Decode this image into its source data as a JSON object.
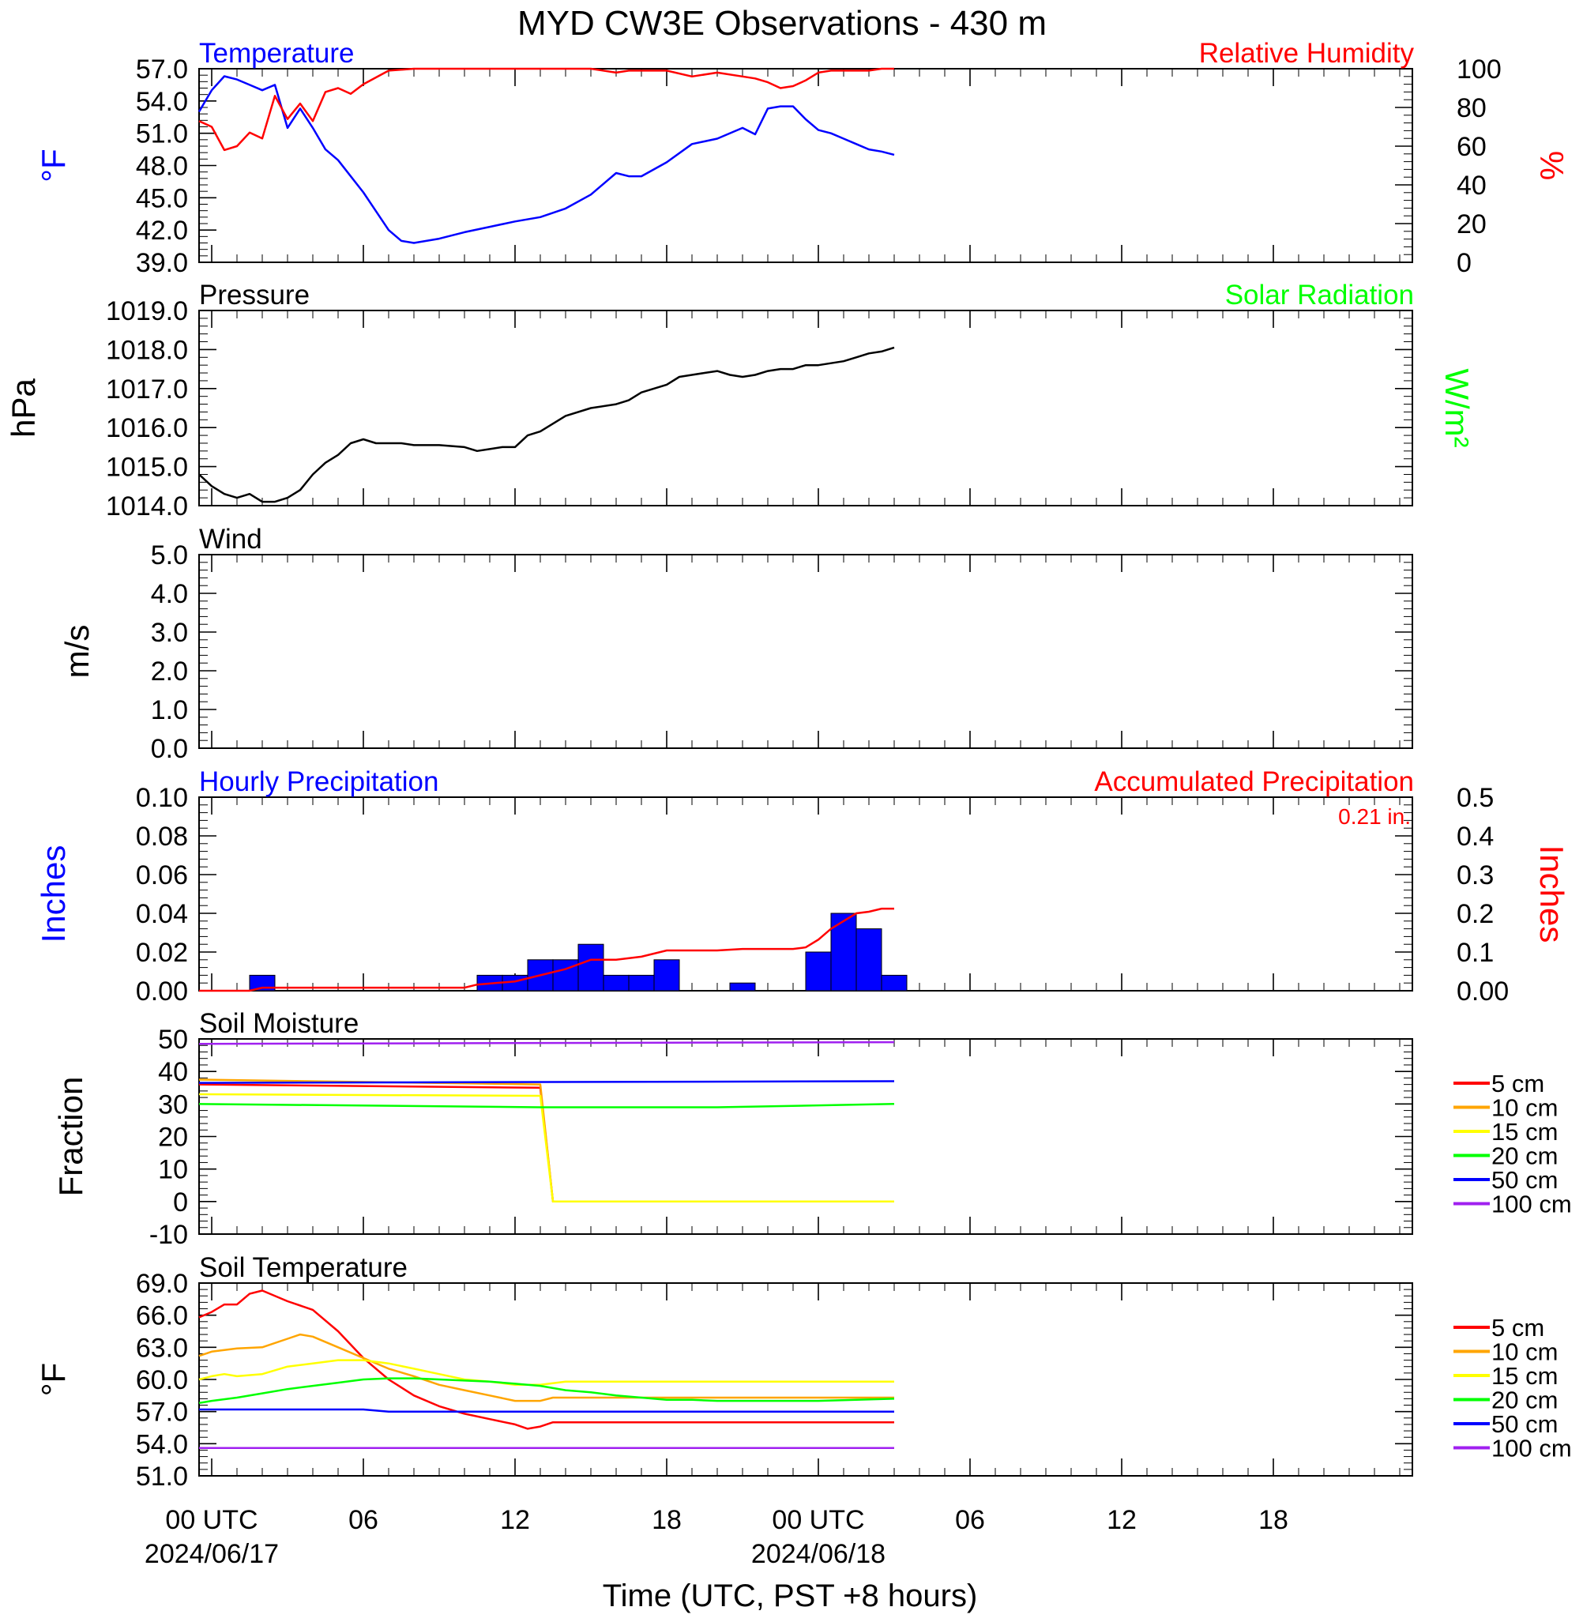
{
  "title": "MYD CW3E Observations - 430 m",
  "x_axis": {
    "label": "Time (UTC, PST +8 hours)",
    "range_hours": [
      -0.5,
      47.5
    ],
    "major_ticks": [
      {
        "hour": 0,
        "label": "00 UTC",
        "date": "2024/06/17"
      },
      {
        "hour": 6,
        "label": "06",
        "date": ""
      },
      {
        "hour": 12,
        "label": "12",
        "date": ""
      },
      {
        "hour": 18,
        "label": "18",
        "date": ""
      },
      {
        "hour": 24,
        "label": "00 UTC",
        "date": "2024/06/18"
      },
      {
        "hour": 30,
        "label": "06",
        "date": ""
      },
      {
        "hour": 36,
        "label": "12",
        "date": ""
      },
      {
        "hour": 42,
        "label": "18",
        "date": ""
      }
    ]
  },
  "colors": {
    "temperature": "#0000ff",
    "humidity": "#ff0000",
    "pressure": "#000000",
    "solar": "#00ff00",
    "hourly_precip": "#0000ff",
    "accum_precip": "#ff0000",
    "depth_5cm": "#ff0000",
    "depth_10cm": "#ffa500",
    "depth_15cm": "#ffff00",
    "depth_20cm": "#00ff00",
    "depth_50cm": "#0000ff",
    "depth_100cm": "#a020f0"
  },
  "panels": {
    "temp_rh": {
      "left_title": "Temperature",
      "right_title": "Relative Humidity",
      "left_unit": "°F",
      "right_unit": "%"
    },
    "pressure": {
      "left_title": "Pressure",
      "right_title": "Solar Radiation",
      "left_unit": "hPa",
      "right_unit": "W/m²"
    },
    "wind": {
      "left_title": "Wind",
      "left_unit": "m/s"
    },
    "precip": {
      "left_title": "Hourly Precipitation",
      "right_title": "Accumulated Precipitation",
      "left_unit": "Inches",
      "right_unit": "Inches",
      "total_note": "0.21 in."
    },
    "soil_moisture": {
      "left_title": "Soil Moisture",
      "left_unit": "Fraction"
    },
    "soil_temp": {
      "left_title": "Soil Temperature",
      "left_unit": "°F"
    }
  },
  "chart_data": [
    {
      "id": "temp_rh",
      "type": "line",
      "y_left": {
        "range": [
          39,
          57
        ],
        "ticks": [
          "39.0",
          "42.0",
          "45.0",
          "48.0",
          "51.0",
          "54.0",
          "57.0"
        ]
      },
      "y_right": {
        "range": [
          0,
          100
        ],
        "ticks": [
          "0",
          "20",
          "40",
          "60",
          "80",
          "100"
        ]
      },
      "series": [
        {
          "name": "Temperature",
          "axis": "left",
          "color_key": "temperature",
          "x": [
            -0.5,
            0,
            0.5,
            1,
            1.5,
            2,
            2.5,
            3,
            3.5,
            4,
            4.5,
            5,
            6,
            7,
            7.5,
            8,
            9,
            10,
            11,
            12,
            13,
            14,
            15,
            16,
            16.5,
            17,
            18,
            19,
            20,
            21,
            21.5,
            22,
            22.5,
            23,
            23.5,
            24,
            24.5,
            25,
            25.5,
            26,
            26.5,
            27
          ],
          "y": [
            53,
            55,
            56.3,
            56,
            55.5,
            55,
            55.5,
            51.5,
            53.3,
            51.5,
            49.5,
            48.5,
            45.5,
            42,
            41,
            40.8,
            41.2,
            41.8,
            42.3,
            42.8,
            43.2,
            44,
            45.3,
            47.3,
            47,
            47,
            48.3,
            50,
            50.5,
            51.5,
            50.9,
            53.3,
            53.5,
            53.5,
            52.3,
            51.3,
            51,
            50.5,
            50,
            49.5,
            49.3,
            49
          ]
        },
        {
          "name": "Relative Humidity",
          "axis": "right",
          "color_key": "humidity",
          "x": [
            -0.5,
            0,
            0.5,
            1,
            1.5,
            2,
            2.5,
            3,
            3.5,
            4,
            4.5,
            5,
            5.5,
            6,
            7,
            8,
            9,
            10,
            11,
            12,
            13,
            14,
            15,
            16,
            16.5,
            17,
            18,
            19,
            20,
            21,
            21.5,
            22,
            22.5,
            23,
            23.5,
            24,
            24.5,
            25,
            25.5,
            26,
            26.5,
            27
          ],
          "y": [
            73,
            70,
            58,
            60,
            67,
            64,
            86,
            74,
            82,
            73,
            88,
            90,
            87,
            92,
            99,
            100,
            100,
            100,
            100,
            100,
            100,
            100,
            100,
            98,
            99,
            99,
            99,
            96,
            98,
            96,
            95,
            93,
            90,
            91,
            94,
            98,
            99,
            99,
            99,
            99,
            100,
            100
          ]
        }
      ]
    },
    {
      "id": "pressure",
      "type": "line",
      "y_left": {
        "range": [
          1014,
          1019
        ],
        "ticks": [
          "1014.0",
          "1015.0",
          "1016.0",
          "1017.0",
          "1018.0",
          "1019.0"
        ]
      },
      "series": [
        {
          "name": "Pressure",
          "axis": "left",
          "color_key": "pressure",
          "x": [
            -0.5,
            0,
            0.5,
            1,
            1.5,
            2,
            2.5,
            3,
            3.5,
            4,
            4.5,
            5,
            5.5,
            6,
            6.5,
            7,
            7.5,
            8,
            9,
            10,
            10.5,
            11,
            11.5,
            12,
            12.5,
            13,
            14,
            15,
            16,
            16.5,
            17,
            18,
            18.5,
            19,
            19.5,
            20,
            20.5,
            21,
            21.5,
            22,
            22.5,
            23,
            23.5,
            24,
            24.5,
            25,
            25.5,
            26,
            26.5,
            27
          ],
          "y": [
            1014.8,
            1014.5,
            1014.3,
            1014.2,
            1014.3,
            1014.1,
            1014.1,
            1014.2,
            1014.4,
            1014.8,
            1015.1,
            1015.3,
            1015.6,
            1015.7,
            1015.6,
            1015.6,
            1015.6,
            1015.55,
            1015.55,
            1015.5,
            1015.4,
            1015.45,
            1015.5,
            1015.5,
            1015.8,
            1015.9,
            1016.3,
            1016.5,
            1016.6,
            1016.7,
            1016.9,
            1017.1,
            1017.3,
            1017.35,
            1017.4,
            1017.45,
            1017.35,
            1017.3,
            1017.35,
            1017.45,
            1017.5,
            1017.5,
            1017.6,
            1017.6,
            1017.65,
            1017.7,
            1017.8,
            1017.9,
            1017.95,
            1018.05
          ]
        }
      ]
    },
    {
      "id": "wind",
      "type": "line",
      "y_left": {
        "range": [
          0,
          5
        ],
        "ticks": [
          "0.0",
          "1.0",
          "2.0",
          "3.0",
          "4.0",
          "5.0"
        ]
      },
      "series": []
    },
    {
      "id": "precip",
      "type": "bar",
      "y_left": {
        "range": [
          0,
          0.1
        ],
        "ticks": [
          "0.00",
          "0.02",
          "0.04",
          "0.06",
          "0.08",
          "0.10"
        ]
      },
      "y_right": {
        "range": [
          0,
          0.5
        ],
        "ticks": [
          "0.00",
          "0.1",
          "0.2",
          "0.3",
          "0.4",
          "0.5"
        ]
      },
      "hourly": {
        "x": [
          2,
          11,
          12,
          13,
          14,
          15,
          16,
          17,
          18,
          21,
          24,
          25,
          26,
          27
        ],
        "y": [
          0.008,
          0.008,
          0.008,
          0.016,
          0.016,
          0.024,
          0.008,
          0.008,
          0.016,
          0.004,
          0.02,
          0.04,
          0.032,
          0.008
        ]
      },
      "accumulated": {
        "x": [
          -0.5,
          1.5,
          2,
          3,
          10,
          10.5,
          12,
          13,
          14,
          15,
          16,
          17,
          18,
          19,
          20,
          21,
          22,
          23,
          23.5,
          24,
          24.5,
          25,
          25.5,
          26,
          26.5,
          27
        ],
        "y": [
          0,
          0,
          0.008,
          0.008,
          0.008,
          0.016,
          0.024,
          0.04,
          0.056,
          0.08,
          0.08,
          0.088,
          0.104,
          0.104,
          0.104,
          0.108,
          0.108,
          0.108,
          0.112,
          0.132,
          0.16,
          0.18,
          0.2,
          0.204,
          0.212,
          0.212
        ]
      }
    },
    {
      "id": "soil_moisture",
      "type": "line",
      "y_left": {
        "range": [
          -10,
          50
        ],
        "ticks": [
          "-10",
          "0",
          "10",
          "20",
          "30",
          "40",
          "50"
        ]
      },
      "series": [
        {
          "name": "5 cm",
          "color_key": "depth_5cm",
          "x": [
            -0.5,
            13,
            13.5,
            27
          ],
          "y": [
            36,
            35,
            0,
            0
          ]
        },
        {
          "name": "10 cm",
          "color_key": "depth_10cm",
          "x": [
            -0.5,
            13,
            13.5,
            27
          ],
          "y": [
            37.5,
            36,
            0,
            0
          ]
        },
        {
          "name": "15 cm",
          "color_key": "depth_15cm",
          "x": [
            -0.5,
            13,
            13.5,
            27
          ],
          "y": [
            33,
            32.5,
            0,
            0
          ]
        },
        {
          "name": "20 cm",
          "color_key": "depth_20cm",
          "x": [
            -0.5,
            13,
            20,
            27
          ],
          "y": [
            30,
            29,
            29,
            30
          ]
        },
        {
          "name": "50 cm",
          "color_key": "depth_50cm",
          "x": [
            -0.5,
            27
          ],
          "y": [
            36.5,
            37
          ]
        },
        {
          "name": "100 cm",
          "color_key": "depth_100cm",
          "x": [
            -0.5,
            27
          ],
          "y": [
            48.5,
            49
          ]
        }
      ]
    },
    {
      "id": "soil_temp",
      "type": "line",
      "y_left": {
        "range": [
          51,
          69
        ],
        "ticks": [
          "51.0",
          "54.0",
          "57.0",
          "60.0",
          "63.0",
          "66.0",
          "69.0"
        ]
      },
      "series": [
        {
          "name": "5 cm",
          "color_key": "depth_5cm",
          "x": [
            -0.5,
            0,
            0.5,
            1,
            1.5,
            2,
            3,
            4,
            5,
            6,
            7,
            8,
            9,
            10,
            11,
            12,
            12.5,
            13,
            13.5,
            14,
            16,
            18,
            20,
            22,
            24,
            27
          ],
          "y": [
            65.8,
            66.3,
            67,
            67,
            68,
            68.3,
            67.3,
            66.5,
            64.5,
            62,
            60,
            58.5,
            57.5,
            56.8,
            56.3,
            55.8,
            55.4,
            55.6,
            56,
            56,
            56,
            56,
            56,
            56,
            56,
            56
          ]
        },
        {
          "name": "10 cm",
          "color_key": "depth_10cm",
          "x": [
            -0.5,
            0,
            1,
            2,
            3,
            3.5,
            4,
            5,
            6,
            7,
            8,
            9,
            10,
            11,
            12,
            13,
            13.5,
            14,
            16,
            18,
            20,
            22,
            24,
            27
          ],
          "y": [
            62.2,
            62.6,
            62.9,
            63,
            63.8,
            64.2,
            64,
            63,
            62,
            61,
            60.3,
            59.5,
            59,
            58.5,
            58,
            58,
            58.3,
            58.3,
            58.3,
            58.3,
            58.3,
            58.3,
            58.3,
            58.3
          ]
        },
        {
          "name": "15 cm",
          "color_key": "depth_15cm",
          "x": [
            -0.5,
            0,
            0.5,
            1,
            2,
            3,
            4,
            5,
            6,
            7,
            8,
            9,
            10,
            11,
            12,
            13,
            14,
            16,
            18,
            20,
            22,
            24,
            27
          ],
          "y": [
            60,
            60.3,
            60.5,
            60.3,
            60.5,
            61.2,
            61.5,
            61.8,
            61.8,
            61.5,
            61,
            60.5,
            60,
            59.8,
            59.5,
            59.5,
            59.8,
            59.8,
            59.8,
            59.8,
            59.8,
            59.8,
            59.8
          ]
        },
        {
          "name": "20 cm",
          "color_key": "depth_20cm",
          "x": [
            -0.5,
            0,
            1,
            2,
            3,
            4,
            5,
            6,
            7,
            8,
            9,
            10,
            11,
            12,
            13,
            14,
            15,
            16,
            17,
            18,
            19,
            20,
            21,
            22,
            23,
            24,
            27
          ],
          "y": [
            57.8,
            58,
            58.3,
            58.7,
            59.1,
            59.4,
            59.7,
            60,
            60.1,
            60.1,
            60,
            59.9,
            59.8,
            59.6,
            59.4,
            59,
            58.8,
            58.5,
            58.3,
            58.1,
            58.1,
            58,
            58,
            58,
            58,
            58,
            58.2
          ]
        },
        {
          "name": "50 cm",
          "color_key": "depth_50cm",
          "x": [
            -0.5,
            6,
            7,
            27
          ],
          "y": [
            57.2,
            57.2,
            57,
            57
          ]
        },
        {
          "name": "100 cm",
          "color_key": "depth_100cm",
          "x": [
            -0.5,
            27
          ],
          "y": [
            53.6,
            53.6
          ]
        }
      ]
    }
  ]
}
